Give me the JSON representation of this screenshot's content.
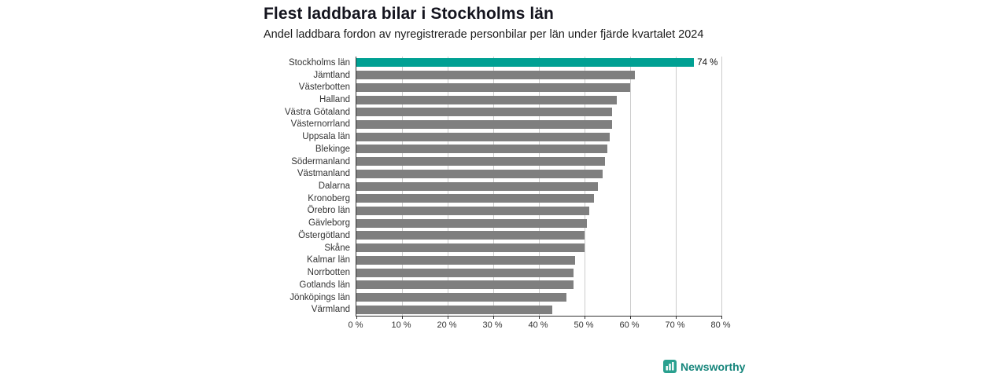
{
  "header": {
    "title": "Flest laddbara bilar i Stockholms län",
    "subtitle": "Andel laddbara fordon av nyregistrerade personbilar per län under fjärde kvartalet 2024"
  },
  "chart_data": {
    "type": "bar",
    "orientation": "horizontal",
    "title": "Flest laddbara bilar i Stockholms län",
    "subtitle": "Andel laddbara fordon av nyregistrerade personbilar per län under fjärde kvartalet 2024",
    "categories": [
      "Stockholms län",
      "Jämtland",
      "Västerbotten",
      "Halland",
      "Västra Götaland",
      "Västernorrland",
      "Uppsala län",
      "Blekinge",
      "Södermanland",
      "Västmanland",
      "Dalarna",
      "Kronoberg",
      "Örebro län",
      "Gävleborg",
      "Östergötland",
      "Skåne",
      "Kalmar län",
      "Norrbotten",
      "Gotlands län",
      "Jönköpings län",
      "Värmland"
    ],
    "values": [
      74,
      61,
      60,
      57,
      56,
      56,
      55.5,
      55,
      54.5,
      54,
      53,
      52,
      51,
      50.5,
      50,
      50,
      48,
      47.5,
      47.5,
      46,
      43
    ],
    "value_suffix": " %",
    "xlim": [
      0,
      80
    ],
    "x_ticks": [
      "0 %",
      "10 %",
      "20 %",
      "30 %",
      "40 %",
      "50 %",
      "60 %",
      "70 %",
      "80 %"
    ],
    "annotation": {
      "index": 0,
      "label": "74 %"
    },
    "highlight_index": 0,
    "grid": true,
    "legend": false,
    "colors": {
      "highlight": "#00a093",
      "bar": "#7f7f7f",
      "grid": "#cccccc",
      "axis": "#333333",
      "text": "#1a1a1a"
    }
  },
  "footer": {
    "brand": "Newsworthy"
  }
}
